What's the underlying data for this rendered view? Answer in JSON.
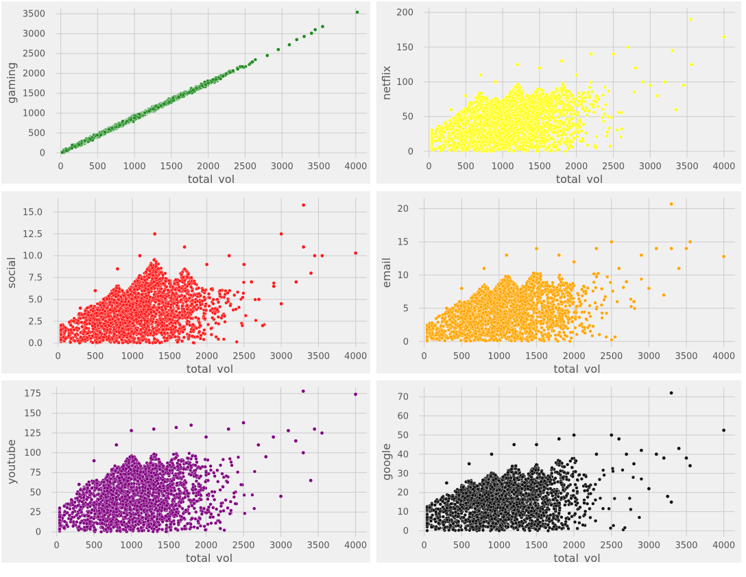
{
  "chart_data": [
    {
      "type": "scatter",
      "xlabel": "total_vol",
      "ylabel": "gaming",
      "color": "#228b22",
      "xlim": [
        -70,
        4150
      ],
      "ylim": [
        -120,
        3640
      ],
      "xticks": [
        0,
        500,
        1000,
        1500,
        2000,
        2500,
        3000,
        3500,
        4000
      ],
      "yticks": [
        0,
        500,
        1000,
        1500,
        2000,
        2500,
        3000,
        3500
      ],
      "ytick_labels": [
        "0",
        "500",
        "1000",
        "1500",
        "2000",
        "2500",
        "3000",
        "3500"
      ],
      "trend": "linear",
      "slope": 0.88,
      "series_name": "",
      "points": [
        [
          20,
          12
        ],
        [
          80,
          60
        ],
        [
          150,
          120
        ],
        [
          250,
          210
        ],
        [
          400,
          340
        ],
        [
          600,
          520
        ],
        [
          800,
          700
        ],
        [
          1000,
          880
        ],
        [
          1200,
          1050
        ],
        [
          1400,
          1230
        ],
        [
          1600,
          1400
        ],
        [
          1800,
          1580
        ],
        [
          2000,
          1760
        ],
        [
          2200,
          1930
        ],
        [
          2400,
          2110
        ],
        [
          2600,
          2290
        ],
        [
          2800,
          2450
        ],
        [
          2950,
          2600
        ],
        [
          3100,
          2720
        ],
        [
          3200,
          2850
        ],
        [
          3300,
          2930
        ],
        [
          3400,
          3010
        ],
        [
          3450,
          3100
        ],
        [
          3550,
          3180
        ],
        [
          4020,
          3540
        ]
      ],
      "grid": true
    },
    {
      "type": "scatter",
      "xlabel": "total_vol",
      "ylabel": "netflix",
      "color": "#ffff1a",
      "xlim": [
        -70,
        4150
      ],
      "ylim": [
        -9,
        206
      ],
      "xticks": [
        0,
        500,
        1000,
        1500,
        2000,
        2500,
        3000,
        3500,
        4000
      ],
      "yticks": [
        0,
        50,
        100,
        150,
        200
      ],
      "ytick_labels": [
        "0",
        "50",
        "100",
        "150",
        "200"
      ],
      "series_name": "",
      "points": [
        [
          50,
          2
        ],
        [
          100,
          30
        ],
        [
          300,
          60
        ],
        [
          500,
          80
        ],
        [
          700,
          110
        ],
        [
          900,
          100
        ],
        [
          1200,
          125
        ],
        [
          1500,
          120
        ],
        [
          1800,
          130
        ],
        [
          2000,
          110
        ],
        [
          2200,
          140
        ],
        [
          2500,
          140
        ],
        [
          2700,
          150
        ],
        [
          2800,
          120
        ],
        [
          2900,
          100
        ],
        [
          3000,
          95
        ],
        [
          3100,
          80
        ],
        [
          3200,
          100
        ],
        [
          3300,
          145
        ],
        [
          3350,
          60
        ],
        [
          3450,
          95
        ],
        [
          3550,
          190
        ],
        [
          3560,
          125
        ],
        [
          4000,
          165
        ]
      ],
      "grid": true
    },
    {
      "type": "scatter",
      "xlabel": "total_vol",
      "ylabel": "social",
      "color": "#ff1a1a",
      "xlim": [
        -70,
        4150
      ],
      "ylim": [
        -0.5,
        16.6
      ],
      "xticks": [
        0,
        500,
        1000,
        1500,
        2000,
        2500,
        3000,
        3500,
        4000
      ],
      "yticks": [
        0,
        2.5,
        5,
        7.5,
        10,
        12.5,
        15
      ],
      "ytick_labels": [
        "0.0",
        "2.5",
        "5.0",
        "7.5",
        "10.0",
        "12.5",
        "15.0"
      ],
      "series_name": "",
      "points": [
        [
          100,
          0.5
        ],
        [
          300,
          4
        ],
        [
          500,
          6
        ],
        [
          800,
          8.5
        ],
        [
          1100,
          10
        ],
        [
          1300,
          12.5
        ],
        [
          1700,
          11
        ],
        [
          2000,
          9
        ],
        [
          2300,
          10
        ],
        [
          2500,
          9
        ],
        [
          2600,
          7
        ],
        [
          2700,
          5
        ],
        [
          2750,
          2
        ],
        [
          2900,
          6.5
        ],
        [
          3000,
          12.5
        ],
        [
          3000,
          4.5
        ],
        [
          3200,
          7
        ],
        [
          3300,
          15.8
        ],
        [
          3300,
          11
        ],
        [
          3400,
          8
        ],
        [
          3450,
          10
        ],
        [
          3550,
          10
        ],
        [
          4000,
          10.3
        ]
      ],
      "grid": true
    },
    {
      "type": "scatter",
      "xlabel": "total_vol",
      "ylabel": "email",
      "color": "#ffa500",
      "xlim": [
        -70,
        4150
      ],
      "ylim": [
        -0.9,
        21.6
      ],
      "xticks": [
        0,
        500,
        1000,
        1500,
        2000,
        2500,
        3000,
        3500,
        4000
      ],
      "yticks": [
        0,
        5,
        10,
        15,
        20
      ],
      "ytick_labels": [
        "0",
        "5",
        "10",
        "15",
        "20"
      ],
      "series_name": "",
      "points": [
        [
          100,
          0.5
        ],
        [
          300,
          5
        ],
        [
          500,
          8
        ],
        [
          800,
          11
        ],
        [
          1100,
          13
        ],
        [
          1500,
          14
        ],
        [
          1800,
          13
        ],
        [
          2000,
          12
        ],
        [
          2300,
          14
        ],
        [
          2500,
          15
        ],
        [
          2600,
          11
        ],
        [
          2700,
          9
        ],
        [
          2800,
          6
        ],
        [
          2900,
          13
        ],
        [
          3000,
          8
        ],
        [
          3100,
          14
        ],
        [
          3200,
          7
        ],
        [
          3300,
          20.7
        ],
        [
          3300,
          14
        ],
        [
          3400,
          11
        ],
        [
          3500,
          14
        ],
        [
          3550,
          15
        ],
        [
          4000,
          12.8
        ]
      ],
      "grid": true
    },
    {
      "type": "scatter",
      "xlabel": "total_vol",
      "ylabel": "youtube",
      "color": "#800080",
      "xlim": [
        -70,
        4150
      ],
      "ylim": [
        -6,
        183
      ],
      "xticks": [
        0,
        500,
        1000,
        1500,
        2000,
        2500,
        3000,
        3500,
        4000
      ],
      "yticks": [
        0,
        25,
        50,
        75,
        100,
        125,
        150,
        175
      ],
      "ytick_labels": [
        "0",
        "25",
        "50",
        "75",
        "100",
        "125",
        "150",
        "175"
      ],
      "series_name": "",
      "points": [
        [
          100,
          5
        ],
        [
          300,
          60
        ],
        [
          500,
          90
        ],
        [
          800,
          110
        ],
        [
          1000,
          128
        ],
        [
          1300,
          130
        ],
        [
          1600,
          132
        ],
        [
          1800,
          135
        ],
        [
          2000,
          120
        ],
        [
          2300,
          130
        ],
        [
          2500,
          138
        ],
        [
          2700,
          110
        ],
        [
          2800,
          95
        ],
        [
          2900,
          120
        ],
        [
          3000,
          45
        ],
        [
          3100,
          128
        ],
        [
          3200,
          115
        ],
        [
          3300,
          178
        ],
        [
          3300,
          100
        ],
        [
          3400,
          65
        ],
        [
          3450,
          130
        ],
        [
          3550,
          125
        ],
        [
          4000,
          174
        ]
      ],
      "grid": true
    },
    {
      "type": "scatter",
      "xlabel": "total_vol",
      "ylabel": "google",
      "color": "#111111",
      "xlim": [
        -70,
        4150
      ],
      "ylim": [
        -3,
        75
      ],
      "xticks": [
        0,
        500,
        1000,
        1500,
        2000,
        2500,
        3000,
        3500,
        4000
      ],
      "yticks": [
        0,
        10,
        20,
        30,
        40,
        50,
        60,
        70
      ],
      "ytick_labels": [
        "0",
        "10",
        "20",
        "30",
        "40",
        "50",
        "60",
        "70"
      ],
      "series_name": "",
      "points": [
        [
          100,
          2
        ],
        [
          300,
          25
        ],
        [
          600,
          35
        ],
        [
          900,
          40
        ],
        [
          1200,
          45
        ],
        [
          1500,
          45
        ],
        [
          1800,
          48
        ],
        [
          2000,
          50
        ],
        [
          2300,
          40
        ],
        [
          2500,
          50
        ],
        [
          2600,
          48
        ],
        [
          2700,
          40
        ],
        [
          2800,
          35
        ],
        [
          2900,
          42
        ],
        [
          3000,
          22
        ],
        [
          3100,
          40
        ],
        [
          3200,
          38
        ],
        [
          3250,
          18
        ],
        [
          3300,
          72
        ],
        [
          3300,
          15
        ],
        [
          3400,
          43
        ],
        [
          3500,
          38
        ],
        [
          3550,
          34
        ],
        [
          4000,
          52.5
        ]
      ],
      "grid": true
    }
  ]
}
